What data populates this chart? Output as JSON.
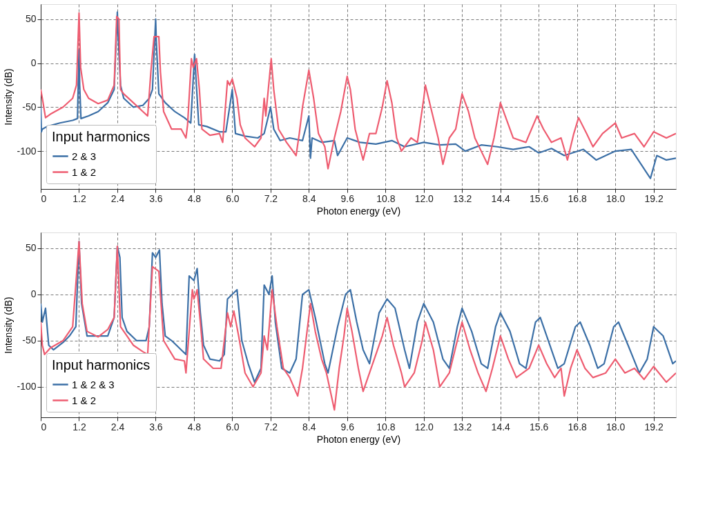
{
  "chart_data": [
    {
      "type": "line",
      "xlabel": "Photon energy (eV)",
      "ylabel": "Intensity (dB)",
      "legend_title": "Input harmonics",
      "legend": "bottom left",
      "grid": true,
      "xlim": [
        0,
        19.9
      ],
      "ylim": [
        -143,
        67
      ],
      "xticks": [
        0,
        1.2,
        2.4,
        3.6,
        4.8,
        {
          "value": 6,
          "label": "6.0"
        },
        7.2,
        8.4,
        9.6,
        10.8,
        {
          "value": 12,
          "label": "12.0"
        },
        13.2,
        14.4,
        15.6,
        16.8,
        {
          "value": 18,
          "label": "18.0"
        },
        19.2
      ],
      "yticks": [
        -100,
        -50,
        0,
        50
      ],
      "series": [
        {
          "name": "2 & 3",
          "color": "#3b6fa6",
          "x": [
            0,
            0.02,
            0.05,
            0.2,
            0.6,
            1.0,
            1.15,
            1.2,
            1.22,
            1.26,
            1.5,
            1.8,
            2.1,
            2.3,
            2.4,
            2.42,
            2.5,
            2.6,
            2.9,
            3.2,
            3.4,
            3.5,
            3.6,
            3.62,
            3.7,
            3.9,
            4.2,
            4.5,
            4.7,
            4.82,
            4.86,
            4.95,
            5.2,
            5.6,
            5.8,
            6.0,
            6.05,
            6.1,
            6.4,
            6.8,
            7.0,
            7.2,
            7.3,
            7.5,
            7.8,
            8.2,
            8.4,
            8.45,
            8.5,
            8.8,
            9.2,
            9.3,
            9.6,
            10.0,
            10.5,
            11.0,
            11.4,
            12.0,
            12.5,
            13.0,
            13.3,
            13.8,
            14.3,
            14.8,
            15.3,
            15.6,
            16.0,
            16.4,
            17.0,
            17.4,
            18.0,
            18.5,
            19.1,
            19.3,
            19.6,
            19.9
          ],
          "values": [
            -50,
            -78,
            -75,
            -72,
            -68,
            -65,
            -63,
            15,
            -25,
            -63,
            -60,
            -55,
            -45,
            -30,
            58,
            35,
            -25,
            -40,
            -50,
            -48,
            -40,
            -30,
            50,
            25,
            -35,
            -45,
            -55,
            -62,
            -68,
            10,
            -15,
            -70,
            -72,
            -78,
            -78,
            -30,
            -55,
            -80,
            -83,
            -85,
            -80,
            -50,
            -75,
            -88,
            -85,
            -88,
            -60,
            -108,
            -85,
            -90,
            -88,
            -105,
            -85,
            -90,
            -92,
            -88,
            -95,
            -90,
            -93,
            -92,
            -100,
            -93,
            -95,
            -98,
            -95,
            -102,
            -97,
            -105,
            -98,
            -110,
            -100,
            -98,
            -131,
            -105,
            -110,
            -108
          ]
        },
        {
          "name": "1 & 2",
          "color": "#ee5c70",
          "x": [
            0,
            0.05,
            0.15,
            0.3,
            0.7,
            1.0,
            1.12,
            1.2,
            1.25,
            1.35,
            1.5,
            1.8,
            2.1,
            2.3,
            2.38,
            2.45,
            2.5,
            2.6,
            2.9,
            3.2,
            3.35,
            3.45,
            3.55,
            3.7,
            3.75,
            3.85,
            4.1,
            4.4,
            4.55,
            4.6,
            4.72,
            4.78,
            4.88,
            4.97,
            5.05,
            5.3,
            5.6,
            5.7,
            5.85,
            5.92,
            6.0,
            6.15,
            6.25,
            6.4,
            6.7,
            6.9,
            7.0,
            7.05,
            7.22,
            7.3,
            7.45,
            7.7,
            8.0,
            8.1,
            8.2,
            8.4,
            8.55,
            8.7,
            8.9,
            9.0,
            9.2,
            9.4,
            9.6,
            9.7,
            9.85,
            10.1,
            10.3,
            10.5,
            10.7,
            10.85,
            11.0,
            11.15,
            11.3,
            11.6,
            11.8,
            12.0,
            12.05,
            12.25,
            12.45,
            12.6,
            12.8,
            13.0,
            13.2,
            13.4,
            13.6,
            13.8,
            14.0,
            14.2,
            14.4,
            14.6,
            14.8,
            15.2,
            15.55,
            15.75,
            16.0,
            16.3,
            16.5,
            16.7,
            16.85,
            17.1,
            17.3,
            17.6,
            18.0,
            18.2,
            18.6,
            18.9,
            19.2,
            19.6,
            19.9
          ],
          "values": [
            -30,
            -40,
            -62,
            -58,
            -50,
            -40,
            -25,
            57,
            -5,
            -30,
            -40,
            -46,
            -42,
            -25,
            53,
            50,
            -30,
            -35,
            -45,
            -55,
            -60,
            -10,
            30,
            30,
            -10,
            -55,
            -75,
            -75,
            -85,
            -70,
            5,
            -5,
            5,
            -30,
            -75,
            -82,
            -80,
            -90,
            -20,
            -25,
            -18,
            -40,
            -70,
            -85,
            -95,
            -85,
            -40,
            -60,
            5,
            -30,
            -75,
            -90,
            -105,
            -80,
            -50,
            -8,
            -40,
            -80,
            -95,
            -120,
            -85,
            -55,
            -15,
            -30,
            -75,
            -110,
            -80,
            -80,
            -50,
            -20,
            -45,
            -85,
            -100,
            -85,
            -90,
            -40,
            -25,
            -55,
            -85,
            -115,
            -85,
            -75,
            -35,
            -55,
            -85,
            -100,
            -115,
            -85,
            -45,
            -65,
            -85,
            -90,
            -60,
            -75,
            -90,
            -85,
            -110,
            -80,
            -62,
            -80,
            -95,
            -80,
            -68,
            -85,
            -80,
            -95,
            -78,
            -85,
            -80
          ]
        }
      ]
    },
    {
      "type": "line",
      "xlabel": "Photon energy (eV)",
      "ylabel": "Intensity (dB)",
      "legend_title": "Input harmonics",
      "legend": "bottom left",
      "grid": true,
      "xlim": [
        0,
        19.9
      ],
      "ylim": [
        -133,
        67
      ],
      "xticks": [
        0,
        1.2,
        2.4,
        3.6,
        4.8,
        {
          "value": 6,
          "label": "6.0"
        },
        7.2,
        8.4,
        9.6,
        10.8,
        {
          "value": 12,
          "label": "12.0"
        },
        13.2,
        14.4,
        15.6,
        16.8,
        {
          "value": 18,
          "label": "18.0"
        },
        19.2
      ],
      "yticks": [
        -100,
        -50,
        0,
        50
      ],
      "series": [
        {
          "name": "1 & 2 & 3",
          "color": "#3b6fa6",
          "x": [
            0,
            0.05,
            0.15,
            0.25,
            0.4,
            0.7,
            0.9,
            1.1,
            1.2,
            1.28,
            1.45,
            1.8,
            2.1,
            2.3,
            2.4,
            2.48,
            2.55,
            2.7,
            3.0,
            3.3,
            3.4,
            3.5,
            3.6,
            3.72,
            3.8,
            3.9,
            4.1,
            4.4,
            4.55,
            4.65,
            4.8,
            4.9,
            5.0,
            5.1,
            5.3,
            5.6,
            5.75,
            5.85,
            6.0,
            6.15,
            6.3,
            6.5,
            6.7,
            6.9,
            7.0,
            7.15,
            7.25,
            7.35,
            7.55,
            7.8,
            8.0,
            8.2,
            8.4,
            8.6,
            8.9,
            9.0,
            9.3,
            9.55,
            9.7,
            9.9,
            10.1,
            10.3,
            10.6,
            10.85,
            11.1,
            11.4,
            11.55,
            11.8,
            12.0,
            12.3,
            12.6,
            12.8,
            13.05,
            13.2,
            13.5,
            13.8,
            14.0,
            14.25,
            14.4,
            14.7,
            15.0,
            15.2,
            15.5,
            15.65,
            15.95,
            16.2,
            16.4,
            16.75,
            16.9,
            17.2,
            17.45,
            17.65,
            17.95,
            18.1,
            18.4,
            18.75,
            19.0,
            19.2,
            19.5,
            19.8,
            19.9
          ],
          "values": [
            -10,
            -30,
            -15,
            -55,
            -60,
            -52,
            -45,
            -35,
            57,
            -10,
            -45,
            -45,
            -45,
            -25,
            52,
            40,
            -25,
            -40,
            -50,
            -50,
            -35,
            45,
            40,
            48,
            -10,
            -45,
            -50,
            -60,
            -65,
            20,
            15,
            28,
            -20,
            -55,
            -70,
            -72,
            -65,
            -5,
            0,
            5,
            -50,
            -75,
            -95,
            -80,
            10,
            0,
            20,
            -30,
            -80,
            -85,
            -70,
            0,
            5,
            -25,
            -75,
            -85,
            -35,
            0,
            5,
            -30,
            -60,
            -75,
            -20,
            -5,
            -15,
            -60,
            -80,
            -30,
            -10,
            -30,
            -70,
            -80,
            -35,
            -15,
            -40,
            -75,
            -80,
            -35,
            -20,
            -40,
            -75,
            -80,
            -30,
            -25,
            -55,
            -80,
            -75,
            -35,
            -30,
            -55,
            -80,
            -75,
            -35,
            -30,
            -55,
            -85,
            -70,
            -35,
            -45,
            -75,
            -72
          ]
        },
        {
          "name": "1 & 2",
          "color": "#ee5c70",
          "x": [
            0,
            0.05,
            0.12,
            0.3,
            0.7,
            1.0,
            1.2,
            1.3,
            1.45,
            1.8,
            2.1,
            2.3,
            2.4,
            2.5,
            2.9,
            3.2,
            3.35,
            3.5,
            3.7,
            3.85,
            4.2,
            4.5,
            4.55,
            4.75,
            4.8,
            4.9,
            5.0,
            5.1,
            5.4,
            5.65,
            5.85,
            5.95,
            6.05,
            6.2,
            6.4,
            6.65,
            6.9,
            7.0,
            7.1,
            7.25,
            7.4,
            7.6,
            7.8,
            8.05,
            8.2,
            8.45,
            8.6,
            8.8,
            8.95,
            9.2,
            9.35,
            9.5,
            9.6,
            9.75,
            9.95,
            10.1,
            10.35,
            10.7,
            10.85,
            11.05,
            11.3,
            11.4,
            11.7,
            11.95,
            12.05,
            12.3,
            12.5,
            12.8,
            13.05,
            13.2,
            13.45,
            13.7,
            13.95,
            14.15,
            14.4,
            14.65,
            14.9,
            15.3,
            15.6,
            15.85,
            16.1,
            16.3,
            16.4,
            16.6,
            16.8,
            17.05,
            17.3,
            17.7,
            18.0,
            18.3,
            18.6,
            18.9,
            19.2,
            19.6,
            19.9
          ],
          "values": [
            -30,
            -55,
            -65,
            -58,
            -50,
            -35,
            57,
            -10,
            -40,
            -46,
            -38,
            -25,
            52,
            -35,
            -55,
            -62,
            -65,
            30,
            25,
            -50,
            -70,
            -72,
            -85,
            5,
            -5,
            5,
            -30,
            -70,
            -80,
            -80,
            -20,
            -35,
            -18,
            -45,
            -85,
            -100,
            -85,
            -45,
            -60,
            5,
            -35,
            -80,
            -90,
            -110,
            -80,
            -10,
            -40,
            -70,
            -85,
            -125,
            -80,
            -45,
            -15,
            -40,
            -80,
            -105,
            -80,
            -45,
            -25,
            -55,
            -85,
            -100,
            -85,
            -50,
            -30,
            -60,
            -100,
            -85,
            -50,
            -30,
            -60,
            -85,
            -105,
            -80,
            -45,
            -70,
            -90,
            -80,
            -55,
            -75,
            -90,
            -80,
            -110,
            -80,
            -60,
            -80,
            -90,
            -85,
            -70,
            -85,
            -80,
            -92,
            -78,
            -95,
            -85
          ]
        }
      ]
    }
  ]
}
